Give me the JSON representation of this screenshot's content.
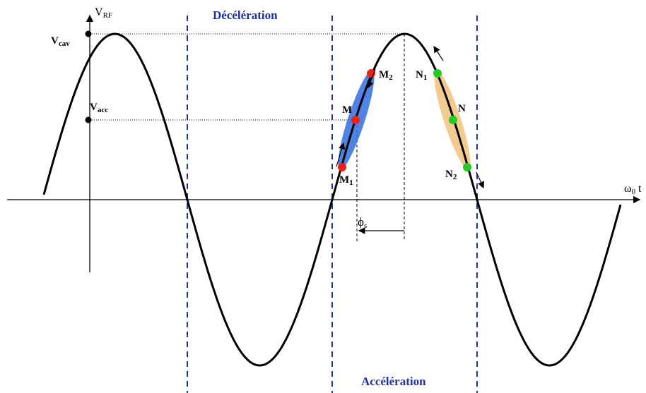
{
  "axes": {
    "y_label": {
      "main": "V",
      "sub": "RF"
    },
    "x_label": {
      "main": "ω",
      "sub": "0",
      "suffix": "t"
    }
  },
  "regions": {
    "top": "Décélération",
    "bottom": "Accélération"
  },
  "levels": [
    {
      "main": "V",
      "sub": "cav"
    },
    {
      "main": "V",
      "sub": "acc"
    }
  ],
  "phase": {
    "main": "ϕ",
    "sub": "s"
  },
  "points": [
    {
      "main": "M",
      "sub": "2"
    },
    {
      "main": "M"
    },
    {
      "main": "M",
      "sub": "1"
    },
    {
      "main": "N",
      "sub": "1"
    },
    {
      "main": "N"
    },
    {
      "main": "N",
      "sub": "2"
    }
  ]
}
